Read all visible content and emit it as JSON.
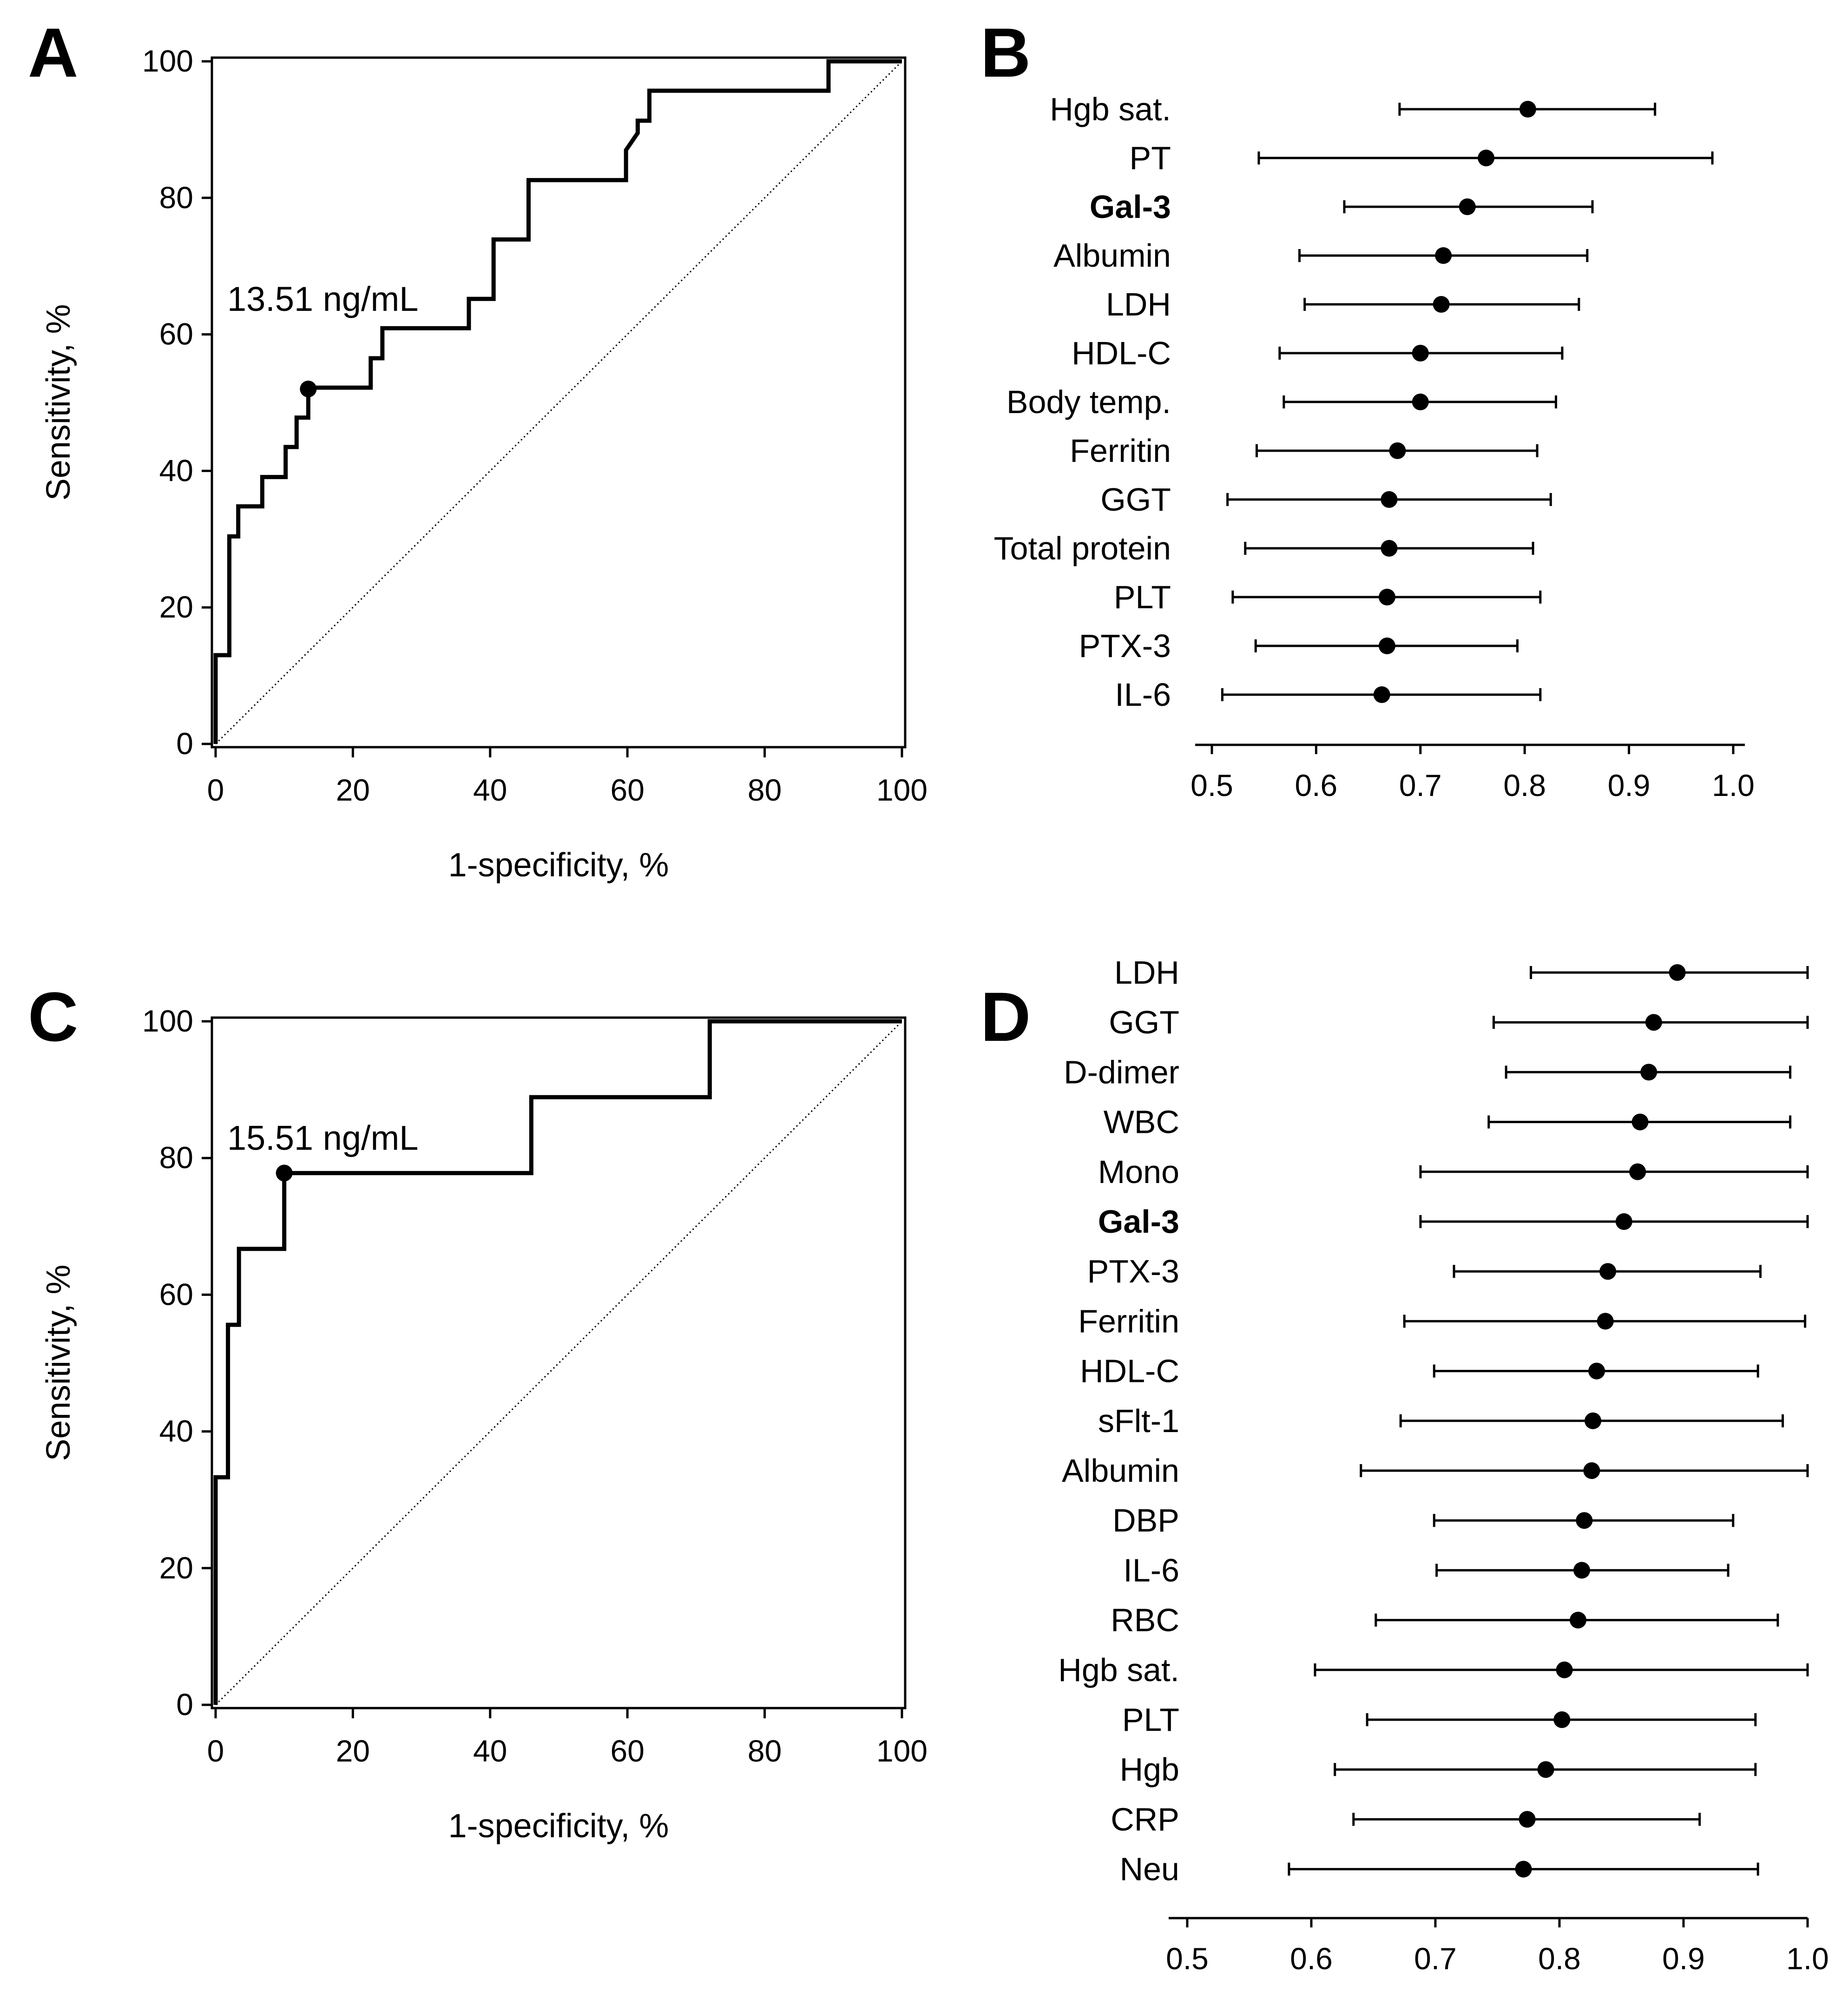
{
  "chart_data": [
    {
      "panel": "A",
      "type": "line",
      "xlabel": "1-specificity, %",
      "ylabel": "Sensitivity, %",
      "xlim": [
        0,
        100
      ],
      "ylim": [
        0,
        100
      ],
      "xticks": [
        "0",
        "20",
        "40",
        "60",
        "80",
        "100"
      ],
      "yticks": [
        "0",
        "20",
        "40",
        "60",
        "80",
        "100"
      ],
      "reference_line": {
        "from": [
          0,
          0
        ],
        "to": [
          100,
          100
        ],
        "style": "dotted"
      },
      "cutoff": {
        "label": "13.51 ng/mL",
        "x": 13.5,
        "y": 52
      },
      "roc_points": [
        [
          0,
          0
        ],
        [
          0,
          13
        ],
        [
          2,
          13
        ],
        [
          2,
          30.4
        ],
        [
          3.3,
          30.4
        ],
        [
          3.3,
          34.8
        ],
        [
          6.8,
          34.8
        ],
        [
          6.8,
          39.1
        ],
        [
          10.2,
          39.1
        ],
        [
          10.2,
          43.5
        ],
        [
          11.8,
          43.5
        ],
        [
          11.8,
          47.8
        ],
        [
          13.5,
          47.8
        ],
        [
          13.5,
          52.2
        ],
        [
          22.6,
          52.2
        ],
        [
          22.6,
          56.5
        ],
        [
          24.3,
          56.5
        ],
        [
          24.3,
          60.9
        ],
        [
          36.9,
          60.9
        ],
        [
          36.9,
          65.2
        ],
        [
          40.5,
          65.2
        ],
        [
          40.5,
          73.9
        ],
        [
          45.6,
          73.9
        ],
        [
          45.6,
          82.6
        ],
        [
          59.8,
          82.6
        ],
        [
          59.8,
          87
        ],
        [
          61.5,
          89.5
        ],
        [
          61.5,
          91.3
        ],
        [
          63.2,
          91.3
        ],
        [
          63.2,
          95.7
        ],
        [
          89.3,
          95.7
        ],
        [
          89.3,
          100
        ],
        [
          100,
          100
        ]
      ]
    },
    {
      "panel": "B",
      "type": "forest",
      "xlim": [
        0.5,
        1.0
      ],
      "xticks": [
        "0.5",
        "0.6",
        "0.7",
        "0.8",
        "0.9",
        "1.0"
      ],
      "rows": [
        {
          "label": "Hgb sat.",
          "bold": false,
          "point": 0.803,
          "low": 0.68,
          "high": 0.925
        },
        {
          "label": "PT",
          "bold": false,
          "point": 0.763,
          "low": 0.545,
          "high": 0.98
        },
        {
          "label": "Gal-3",
          "bold": true,
          "point": 0.745,
          "low": 0.627,
          "high": 0.865
        },
        {
          "label": "Albumin",
          "bold": false,
          "point": 0.722,
          "low": 0.584,
          "high": 0.86
        },
        {
          "label": "LDH",
          "bold": false,
          "point": 0.72,
          "low": 0.589,
          "high": 0.852
        },
        {
          "label": "HDL-C",
          "bold": false,
          "point": 0.7,
          "low": 0.565,
          "high": 0.836
        },
        {
          "label": "Body temp.",
          "bold": false,
          "point": 0.7,
          "low": 0.569,
          "high": 0.83
        },
        {
          "label": "Ferritin",
          "bold": false,
          "point": 0.678,
          "low": 0.543,
          "high": 0.812
        },
        {
          "label": "GGT",
          "bold": false,
          "point": 0.67,
          "low": 0.515,
          "high": 0.825
        },
        {
          "label": "Total protein",
          "bold": false,
          "point": 0.67,
          "low": 0.532,
          "high": 0.808
        },
        {
          "label": "PLT",
          "bold": false,
          "point": 0.668,
          "low": 0.52,
          "high": 0.815
        },
        {
          "label": "PTX-3",
          "bold": false,
          "point": 0.668,
          "low": 0.542,
          "high": 0.793
        },
        {
          "label": "IL-6",
          "bold": false,
          "point": 0.663,
          "low": 0.51,
          "high": 0.815
        }
      ]
    },
    {
      "panel": "C",
      "type": "line",
      "xlabel": "1-specificity, %",
      "ylabel": "Sensitivity, %",
      "xlim": [
        0,
        100
      ],
      "ylim": [
        0,
        100
      ],
      "xticks": [
        "0",
        "20",
        "40",
        "60",
        "80",
        "100"
      ],
      "yticks": [
        "0",
        "20",
        "40",
        "60",
        "80",
        "100"
      ],
      "reference_line": {
        "from": [
          0,
          0
        ],
        "to": [
          100,
          100
        ],
        "style": "dotted"
      },
      "cutoff": {
        "label": "15.51 ng/mL",
        "x": 10,
        "y": 77.8
      },
      "roc_points": [
        [
          0,
          0
        ],
        [
          0,
          33.3
        ],
        [
          1.8,
          33.3
        ],
        [
          1.8,
          55.6
        ],
        [
          3.4,
          55.6
        ],
        [
          3.4,
          66.7
        ],
        [
          10,
          66.7
        ],
        [
          10,
          77.8
        ],
        [
          46,
          77.8
        ],
        [
          46,
          88.9
        ],
        [
          72,
          88.9
        ],
        [
          72,
          100
        ],
        [
          100,
          100
        ]
      ]
    },
    {
      "panel": "D",
      "type": "forest",
      "xlim": [
        0.5,
        1.0
      ],
      "xticks": [
        "0.5",
        "0.6",
        "0.7",
        "0.8",
        "0.9",
        "1.0"
      ],
      "rows": [
        {
          "label": "LDH",
          "bold": false,
          "point": 0.895,
          "low": 0.777,
          "high": 1.0
        },
        {
          "label": "GGT",
          "bold": false,
          "point": 0.876,
          "low": 0.747,
          "high": 1.0
        },
        {
          "label": "D-dimer",
          "bold": false,
          "point": 0.872,
          "low": 0.757,
          "high": 0.986
        },
        {
          "label": "WBC",
          "bold": false,
          "point": 0.865,
          "low": 0.743,
          "high": 0.986
        },
        {
          "label": "Mono",
          "bold": false,
          "point": 0.863,
          "low": 0.688,
          "high": 1.0
        },
        {
          "label": "Gal-3",
          "bold": true,
          "point": 0.852,
          "low": 0.688,
          "high": 1.0
        },
        {
          "label": "PTX-3",
          "bold": false,
          "point": 0.839,
          "low": 0.715,
          "high": 0.962
        },
        {
          "label": "Ferritin",
          "bold": false,
          "point": 0.837,
          "low": 0.675,
          "high": 0.998
        },
        {
          "label": "HDL-C",
          "bold": false,
          "point": 0.83,
          "low": 0.699,
          "high": 0.96
        },
        {
          "label": "sFlt-1",
          "bold": false,
          "point": 0.827,
          "low": 0.672,
          "high": 0.98
        },
        {
          "label": "Albumin",
          "bold": false,
          "point": 0.826,
          "low": 0.64,
          "high": 1.0
        },
        {
          "label": "DBP",
          "bold": false,
          "point": 0.82,
          "low": 0.699,
          "high": 0.94
        },
        {
          "label": "IL-6",
          "bold": false,
          "point": 0.818,
          "low": 0.701,
          "high": 0.936
        },
        {
          "label": "RBC",
          "bold": false,
          "point": 0.815,
          "low": 0.652,
          "high": 0.976
        },
        {
          "label": "Hgb sat.",
          "bold": false,
          "point": 0.804,
          "low": 0.603,
          "high": 1.0
        },
        {
          "label": "PLT",
          "bold": false,
          "point": 0.802,
          "low": 0.645,
          "high": 0.958
        },
        {
          "label": "Hgb",
          "bold": false,
          "point": 0.789,
          "low": 0.619,
          "high": 0.958
        },
        {
          "label": "CRP",
          "bold": false,
          "point": 0.774,
          "low": 0.634,
          "high": 0.913
        },
        {
          "label": "Neu",
          "bold": false,
          "point": 0.771,
          "low": 0.582,
          "high": 0.96
        }
      ]
    }
  ]
}
